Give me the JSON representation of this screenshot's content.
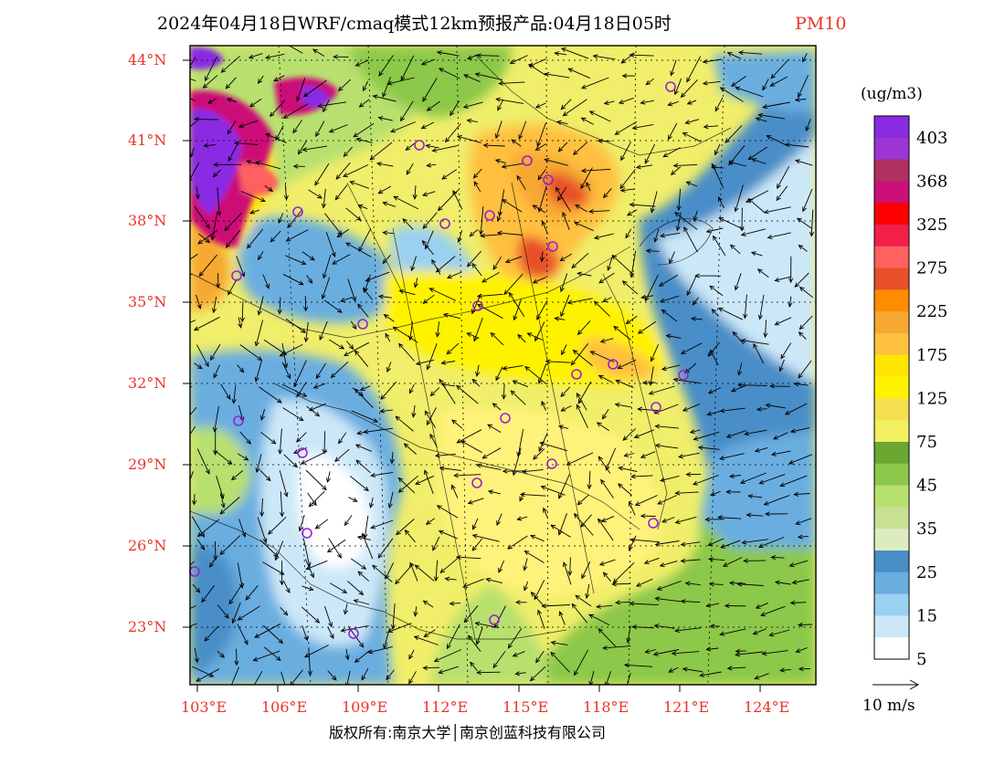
{
  "title": {
    "main": "2024年04月18日WRF/cmaq模式12km预报产品:04月18日05时",
    "variable": "PM10"
  },
  "latitude_labels": [
    "44°N",
    "41°N",
    "38°N",
    "35°N",
    "32°N",
    "29°N",
    "26°N",
    "23°N"
  ],
  "longitude_labels": [
    "103°E",
    "106°E",
    "109°E",
    "112°E",
    "115°E",
    "118°E",
    "121°E",
    "124°E"
  ],
  "colorbar": {
    "unit": "(ug/m3)",
    "labels": [
      "403",
      "368",
      "325",
      "275",
      "225",
      "175",
      "125",
      "75",
      "45",
      "35",
      "25",
      "15",
      "5"
    ],
    "colors": [
      "#8a2be2",
      "#9b35d6",
      "#b03060",
      "#cc1077",
      "#ff0000",
      "#f0204a",
      "#ff6060",
      "#e8502a",
      "#ff8c00",
      "#f7a830",
      "#ffc040",
      "#ffe600",
      "#fff200",
      "#f5e050",
      "#f0f060",
      "#6aa832",
      "#8cc84a",
      "#b8e06e",
      "#c8e094",
      "#dcecc0",
      "#4a8ec8",
      "#6aaee0",
      "#9ad0f0",
      "#cce8f8",
      "#ffffff"
    ]
  },
  "wind_reference": "10 m/s",
  "copyright": "版权所有:南京大学│南京创蓝科技有限公司",
  "colors": {
    "label_red": "#e8342a",
    "city_marker": "#9b1fd8"
  }
}
